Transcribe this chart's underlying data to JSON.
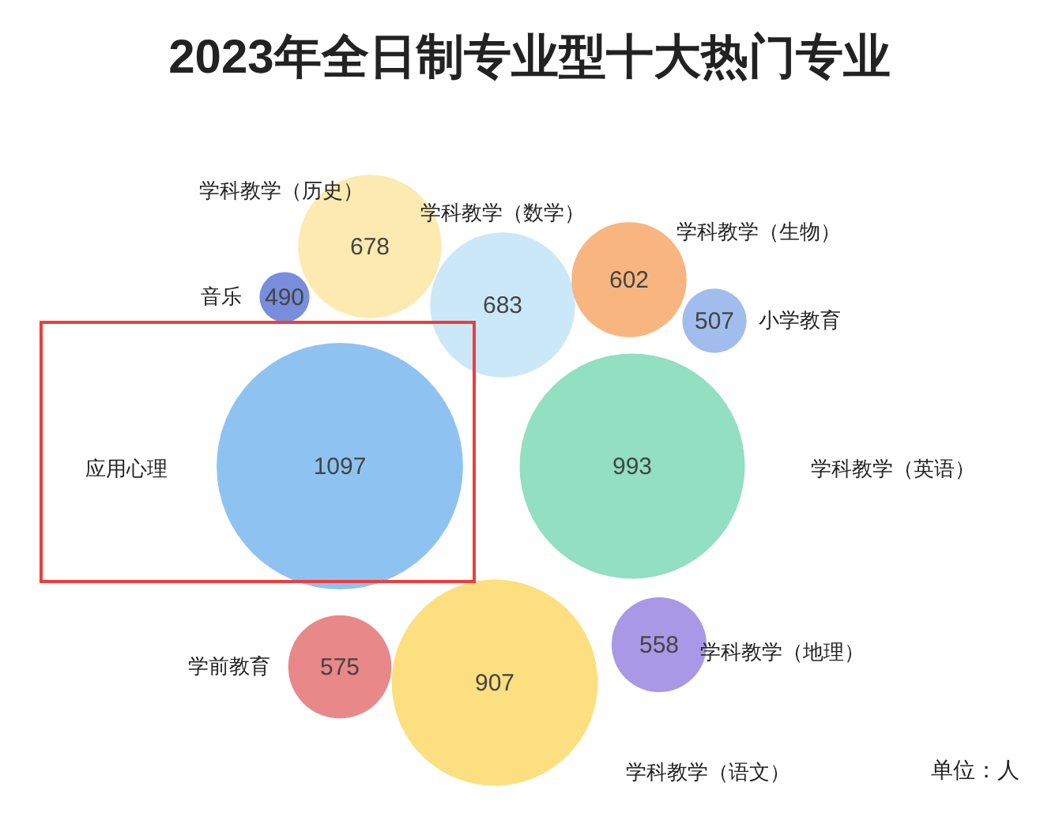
{
  "chart_data": {
    "type": "other",
    "title": "2023年全日制专业型十大热门专业",
    "categories": [
      "应用心理",
      "学科教学（英语）",
      "学科教学（语文）",
      "学科教学（数学）",
      "学科教学（历史）",
      "学科教学（生物）",
      "学前教育",
      "学科教学（地理）",
      "小学教育",
      "音乐"
    ],
    "values": [
      1097,
      993,
      907,
      683,
      678,
      602,
      575,
      558,
      507,
      490
    ],
    "colors": [
      "#7ab8ef",
      "#7fd9b6",
      "#fcd968",
      "#c2e4f8",
      "#fbe6a3",
      "#f8a86a",
      "#e57373",
      "#9a86e2",
      "#8fb1ea",
      "#6079d6"
    ],
    "data_labels": true,
    "annotations": [
      "单位：人"
    ]
  }
}
